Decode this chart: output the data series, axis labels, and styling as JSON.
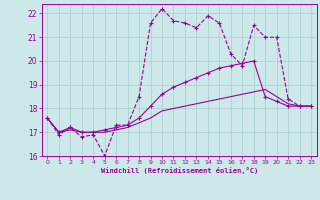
{
  "xlabel": "Windchill (Refroidissement éolien,°C)",
  "background_color": "#cce8e8",
  "grid_color": "#aacccc",
  "line_color": "#990099",
  "xlim": [
    -0.5,
    23.5
  ],
  "ylim": [
    16,
    22.4
  ],
  "yticks": [
    16,
    17,
    18,
    19,
    20,
    21,
    22
  ],
  "xticks": [
    0,
    1,
    2,
    3,
    4,
    5,
    6,
    7,
    8,
    9,
    10,
    11,
    12,
    13,
    14,
    15,
    16,
    17,
    18,
    19,
    20,
    21,
    22,
    23
  ],
  "series1_x": [
    0,
    1,
    2,
    3,
    4,
    5,
    6,
    7,
    8,
    9,
    10,
    11,
    12,
    13,
    14,
    15,
    16,
    17,
    18,
    19,
    20,
    21,
    22,
    23
  ],
  "series1_y": [
    17.6,
    16.9,
    17.2,
    16.8,
    16.9,
    16.0,
    17.3,
    17.3,
    18.5,
    21.6,
    22.2,
    21.7,
    21.6,
    21.4,
    21.9,
    21.6,
    20.3,
    19.8,
    21.5,
    21.0,
    21.0,
    18.4,
    18.1,
    18.1
  ],
  "series2_x": [
    0,
    1,
    2,
    3,
    4,
    5,
    6,
    7,
    8,
    9,
    10,
    11,
    12,
    13,
    14,
    15,
    16,
    17,
    18,
    19,
    20,
    21,
    22,
    23
  ],
  "series2_y": [
    17.6,
    17.0,
    17.2,
    17.0,
    17.0,
    17.1,
    17.2,
    17.3,
    17.6,
    18.1,
    18.6,
    18.9,
    19.1,
    19.3,
    19.5,
    19.7,
    19.8,
    19.9,
    20.0,
    18.5,
    18.3,
    18.1,
    18.1,
    18.1
  ],
  "series3_x": [
    0,
    1,
    2,
    3,
    4,
    5,
    6,
    7,
    8,
    9,
    10,
    11,
    12,
    13,
    14,
    15,
    16,
    17,
    18,
    19,
    20,
    21,
    22,
    23
  ],
  "series3_y": [
    17.6,
    17.0,
    17.1,
    17.0,
    17.0,
    17.0,
    17.1,
    17.2,
    17.4,
    17.6,
    17.9,
    18.0,
    18.1,
    18.2,
    18.3,
    18.4,
    18.5,
    18.6,
    18.7,
    18.8,
    18.5,
    18.2,
    18.1,
    18.1
  ]
}
